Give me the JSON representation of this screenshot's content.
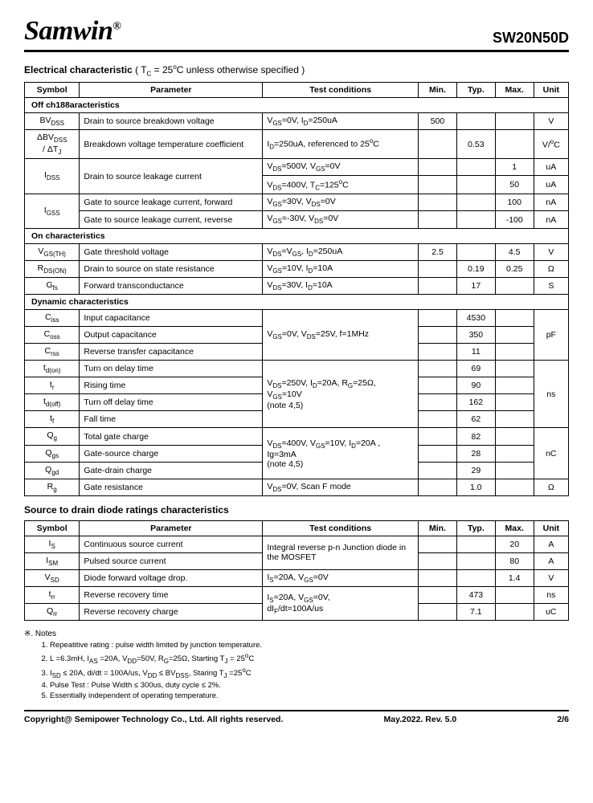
{
  "header": {
    "logo": "Samwin",
    "reg": "®",
    "partno": "SW20N50D"
  },
  "sec1": {
    "title": "Electrical characteristic",
    "cond": " ( T",
    "cond_sub1": "C",
    "cond2": " = 25",
    "cond_sup": "o",
    "cond3": "C unless otherwise specified )",
    "head": {
      "sym": "Symbol",
      "par": "Parameter",
      "tc": "Test conditions",
      "min": "Min.",
      "typ": "Typ.",
      "max": "Max.",
      "unit": "Unit"
    },
    "g1": "Off ch188aracteristics",
    "r1": {
      "sym": "BV",
      "sub": "DSS",
      "par": "Drain to source breakdown voltage",
      "tc_a": "V",
      "tc_as": "GS",
      "tc_b": "=0V, I",
      "tc_bs": "D",
      "tc_c": "=250uA",
      "min": "500",
      "typ": "",
      "max": "",
      "unit": "V"
    },
    "r2": {
      "sym1": "ΔBV",
      "sub1": "DSS",
      "sym2": "/ ΔT",
      "sub2": "J",
      "par": "Breakdown voltage temperature coefficient",
      "tc_a": "I",
      "tc_as": "D",
      "tc_b": "=250uA, referenced to 25",
      "tc_sup": "o",
      "tc_c": "C",
      "min": "",
      "typ": "0.53",
      "max": "",
      "unit": "V/",
      "usup": "o",
      "u2": "C"
    },
    "r3a": {
      "sym": "I",
      "sub": "DSS",
      "par": "Drain to source leakage current",
      "tc_a": "V",
      "tc_as": "DS",
      "tc_b": "=500V, V",
      "tc_bs": "GS",
      "tc_c": "=0V",
      "min": "",
      "typ": "",
      "max": "1",
      "unit": "uA"
    },
    "r3b": {
      "tc_a": "V",
      "tc_as": "DS",
      "tc_b": "=400V, T",
      "tc_bs": "C",
      "tc_c": "=125",
      "tc_sup": "o",
      "tc_d": "C",
      "min": "",
      "typ": "",
      "max": "50",
      "unit": "uA"
    },
    "r4a": {
      "sym": "I",
      "sub": "GSS",
      "par": "Gate to source leakage current, forward",
      "tc_a": "V",
      "tc_as": "GS",
      "tc_b": "=30V, V",
      "tc_bs": "DS",
      "tc_c": "=0V",
      "min": "",
      "typ": "",
      "max": "100",
      "unit": "nA"
    },
    "r4b": {
      "par": "Gate to source leakage current, reverse",
      "tc_a": "V",
      "tc_as": "GS",
      "tc_b": "=-30V, V",
      "tc_bs": "DS",
      "tc_c": "=0V",
      "min": "",
      "typ": "",
      "max": "-100",
      "unit": "nA"
    },
    "g2": "On characteristics",
    "r5": {
      "sym": "V",
      "sub": "GS(TH)",
      "par": "Gate threshold voltage",
      "tc_a": "V",
      "tc_as": "DS",
      "tc_b": "=V",
      "tc_bs": "GS",
      "tc_c": ", I",
      "tc_cs": "D",
      "tc_d": "=250uA",
      "min": "2.5",
      "typ": "",
      "max": "4.5",
      "unit": "V"
    },
    "r6": {
      "sym": "R",
      "sub": "DS(ON)",
      "par": "Drain to source on state resistance",
      "tc_a": "V",
      "tc_as": "GS",
      "tc_b": "=10V, I",
      "tc_bs": "D",
      "tc_c": "=10A",
      "min": "",
      "typ": "0.19",
      "max": "0.25",
      "unit": "Ω"
    },
    "r7": {
      "sym": "G",
      "sub": "fs",
      "par": "Forward transconductance",
      "tc_a": "V",
      "tc_as": "DS",
      "tc_b": "=30V, I",
      "tc_bs": "D",
      "tc_c": "=10A",
      "min": "",
      "typ": "17",
      "max": "",
      "unit": "S"
    },
    "g3": "Dynamic characteristics",
    "r8": {
      "sym": "C",
      "sub": "iss",
      "par": "Input capacitance",
      "typ": "4530"
    },
    "r9": {
      "sym": "C",
      "sub": "oss",
      "par": "Output capacitance",
      "typ": "350"
    },
    "r10": {
      "sym": "C",
      "sub": "rss",
      "par": "Reverse transfer capacitance",
      "typ": "11"
    },
    "tc_cap_a": "V",
    "tc_cap_as": "GS",
    "tc_cap_b": "=0V, V",
    "tc_cap_bs": "DS",
    "tc_cap_c": "=25V, f=1MHz",
    "unit_cap": "pF",
    "r11": {
      "sym": "t",
      "sub": "d(on)",
      "par": "Turn on delay time",
      "typ": "69"
    },
    "r12": {
      "sym": "t",
      "sub": "r",
      "par": "Rising time",
      "typ": "90"
    },
    "r13": {
      "sym": "t",
      "sub": "d(off)",
      "par": "Turn off delay time",
      "typ": "162"
    },
    "r14": {
      "sym": "t",
      "sub": "f",
      "par": "Fall time",
      "typ": "62"
    },
    "tc_sw_a": "V",
    "tc_sw_as": "DS",
    "tc_sw_b": "=250V, I",
    "tc_sw_bs": "D",
    "tc_sw_c": "=20A, R",
    "tc_sw_cs": "G",
    "tc_sw_d": "=25Ω,",
    "tc_sw_e": "V",
    "tc_sw_es": "GS",
    "tc_sw_f": "=10V",
    "tc_sw_note": "(note 4,5)",
    "unit_sw": "ns",
    "r15": {
      "sym": "Q",
      "sub": "g",
      "par": "Total gate charge",
      "typ": "82"
    },
    "r16": {
      "sym": "Q",
      "sub": "gs",
      "par": "Gate-source charge",
      "typ": "28"
    },
    "r17": {
      "sym": "Q",
      "sub": "gd",
      "par": "Gate-drain charge",
      "typ": "29"
    },
    "tc_q_a": "V",
    "tc_q_as": "DS",
    "tc_q_b": "=400V, V",
    "tc_q_bs": "GS",
    "tc_q_c": "=10V, I",
    "tc_q_cs": "D",
    "tc_q_d": "=20A ,",
    "tc_q_e": "Ig=3mA",
    "tc_q_note": "(note 4,5)",
    "unit_q": "nC",
    "r18": {
      "sym": "R",
      "sub": "g",
      "par": "Gate resistance",
      "tc_a": "V",
      "tc_as": "DS",
      "tc_b": "=0V, Scan F mode",
      "min": "",
      "typ": "1.0",
      "max": "",
      "unit": "Ω"
    }
  },
  "sec2": {
    "title": "Source to drain diode ratings characteristics",
    "head": {
      "sym": "Symbol",
      "par": "Parameter",
      "tc": "Test conditions",
      "min": "Min.",
      "typ": "Typ.",
      "max": "Max.",
      "unit": "Unit"
    },
    "r1": {
      "sym": "I",
      "sub": "S",
      "par": "Continuous source current",
      "max": "20",
      "unit": "A"
    },
    "r2": {
      "sym": "I",
      "sub": "SM",
      "par": "Pulsed source current",
      "max": "80",
      "unit": "A"
    },
    "tc12": "Integral reverse p-n Junction diode in the MOSFET",
    "r3": {
      "sym": "V",
      "sub": "SD",
      "par": "Diode forward voltage drop.",
      "tc_a": "I",
      "tc_as": "S",
      "tc_b": "=20A, V",
      "tc_bs": "GS",
      "tc_c": "=0V",
      "max": "1.4",
      "unit": "V"
    },
    "r4": {
      "sym": "t",
      "sub": "rr",
      "par": "Reverse recovery time",
      "typ": "473",
      "unit": "ns"
    },
    "r5": {
      "sym": "Q",
      "sub": "rr",
      "par": "Reverse recovery charge",
      "typ": "7.1",
      "unit": "uC"
    },
    "tc45_a": "I",
    "tc45_as": "S",
    "tc45_b": "=20A, V",
    "tc45_bs": "GS",
    "tc45_c": "=0V,",
    "tc45_d": "dI",
    "tc45_ds": "F",
    "tc45_e": "/dt=100A/us"
  },
  "notes": {
    "h": "※. Notes",
    "n1a": "Repeatitive rating : pulse width limited by junction temperature.",
    "n2a": "L =6.3mH, I",
    "n2as": "AS",
    "n2b": " =20A, V",
    "n2bs": "DD",
    "n2c": "=50V, R",
    "n2cs": "G",
    "n2d": "=25Ω, Starting T",
    "n2ds": "J",
    "n2e": " = 25",
    "n2sup": "o",
    "n2f": "C",
    "n3a": "I",
    "n3as": "SD",
    "n3b": " ≤ 20A, di/dt = 100A/us, V",
    "n3bs": "DD",
    "n3c": " ≤ BV",
    "n3cs": "DSS",
    "n3d": ", Staring T",
    "n3ds": "J",
    "n3e": " =25",
    "n3sup": "o",
    "n3f": "C",
    "n4": "Pulse Test : Pulse Width ≤ 300us, duty cycle ≤ 2%.",
    "n5": "Essentially independent of operating temperature."
  },
  "footer": {
    "left": "Copyright@ Semipower Technology Co., Ltd. All rights reserved.",
    "mid": "May.2022. Rev. 5.0",
    "right": "2/6"
  }
}
